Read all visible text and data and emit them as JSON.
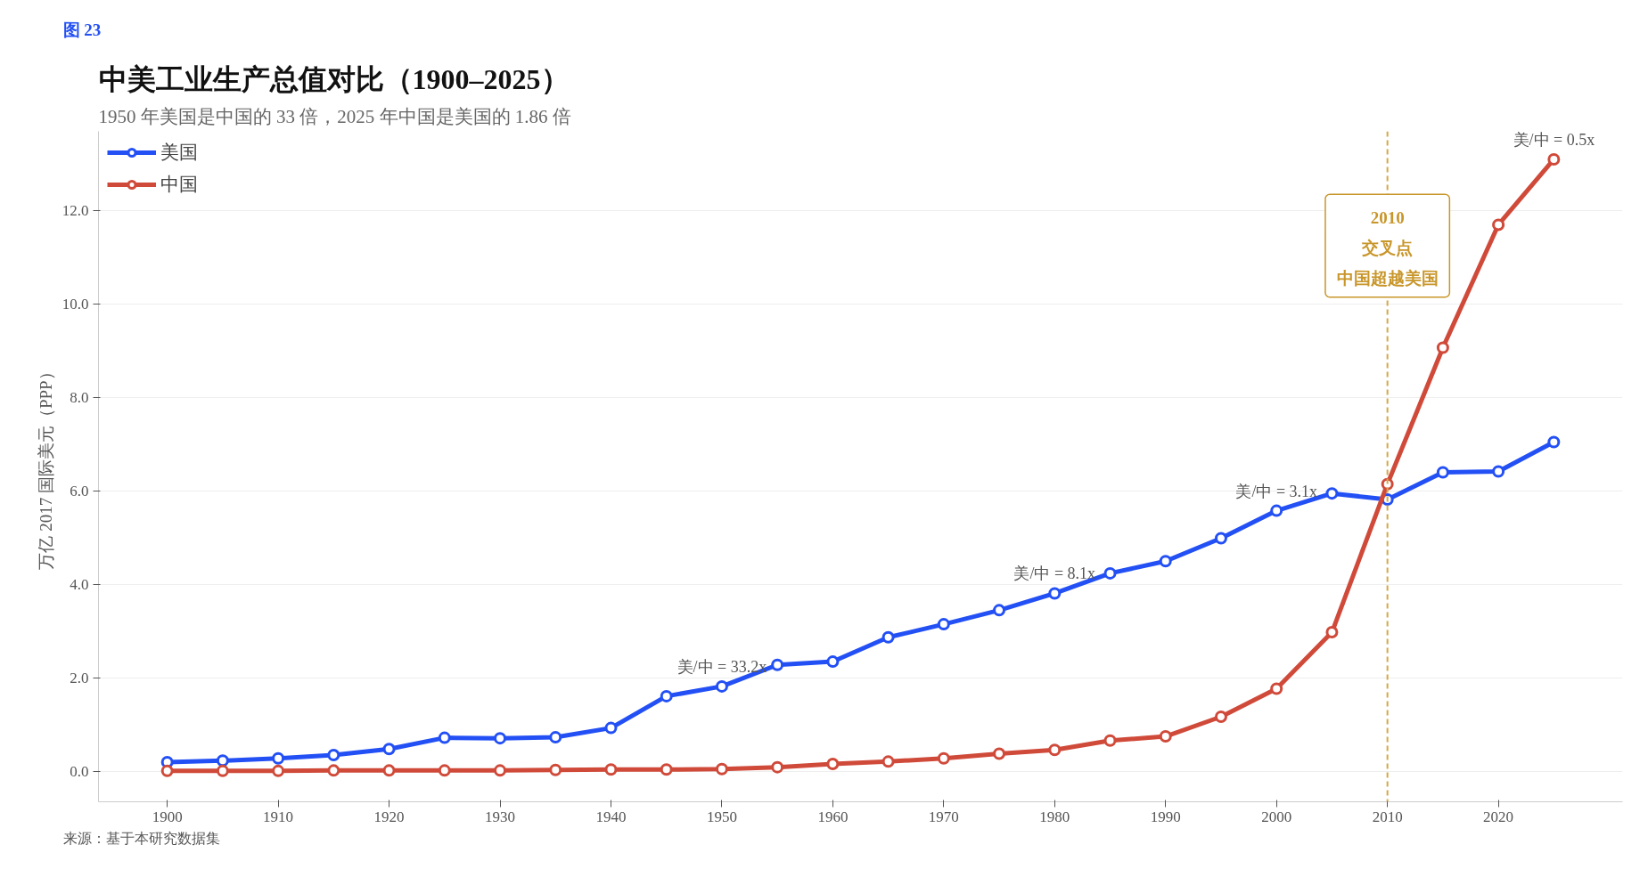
{
  "chart_data": {
    "type": "line",
    "title": "中美工业生产总值对比（1900–2025）",
    "subtitle": "1950 年美国是中国的 33 倍，2025 年中国是美国的 1.86 倍",
    "ylabel": "万亿 2017 国际美元（PPP）",
    "x": [
      1900,
      1905,
      1910,
      1915,
      1920,
      1925,
      1930,
      1935,
      1940,
      1945,
      1950,
      1955,
      1960,
      1965,
      1970,
      1975,
      1980,
      1985,
      1990,
      1995,
      2000,
      2005,
      2010,
      2015,
      2020,
      2025
    ],
    "series": [
      {
        "name": "美国",
        "color": "#2350f5",
        "values": [
          0.2,
          0.23,
          0.28,
          0.35,
          0.48,
          0.72,
          0.71,
          0.73,
          0.93,
          1.61,
          1.82,
          2.28,
          2.35,
          2.87,
          3.15,
          3.45,
          3.81,
          4.24,
          4.5,
          4.99,
          5.58,
          5.95,
          5.82,
          6.4,
          6.42,
          7.05
        ]
      },
      {
        "name": "中国",
        "color": "#d04a3a",
        "values": [
          0.01,
          0.01,
          0.01,
          0.02,
          0.02,
          0.02,
          0.02,
          0.03,
          0.04,
          0.04,
          0.05,
          0.09,
          0.16,
          0.21,
          0.28,
          0.38,
          0.46,
          0.66,
          0.75,
          1.17,
          1.77,
          2.98,
          6.15,
          9.07,
          11.7,
          13.1
        ]
      }
    ],
    "xlim": [
      1893.8,
      2031.2
    ],
    "ylim": [
      -0.65,
      13.7
    ],
    "xticks": [
      1900,
      1910,
      1920,
      1930,
      1940,
      1950,
      1960,
      1970,
      1980,
      1990,
      2000,
      2010,
      2020
    ],
    "yticks": [
      {
        "value": 0,
        "label": "0.0"
      },
      {
        "value": 2,
        "label": "2.0"
      },
      {
        "value": 4,
        "label": "4.0"
      },
      {
        "value": 6,
        "label": "6.0"
      },
      {
        "value": 8,
        "label": "8.0"
      },
      {
        "value": 10,
        "label": "10.0"
      },
      {
        "value": 12,
        "label": "12.0"
      }
    ],
    "grid": "y",
    "legend": "top left",
    "marker": "circle",
    "line_style": "solid",
    "ref_lines": [
      {
        "axis": "x",
        "value": 2010,
        "label": "2010",
        "color": "#d4a84a",
        "line_style": "dashed"
      }
    ],
    "annotations": [
      {
        "text": "美/中 = 33.2x",
        "x": 1950,
        "y": 1.82
      },
      {
        "text": "美/中 = 8.1x",
        "x": 1980,
        "y": 3.81
      },
      {
        "text": "美/中 = 3.1x",
        "x": 2000,
        "y": 5.58
      },
      {
        "text": "美/中 = 0.5x",
        "x": 2025,
        "y": 13.1
      },
      {
        "text": "交叉点",
        "x": 2010,
        "y": 11.2
      },
      {
        "text": "中国超越美国",
        "x": 2010,
        "y": 10.55
      },
      "图 23",
      "来源：基于本研究数据集"
    ]
  }
}
